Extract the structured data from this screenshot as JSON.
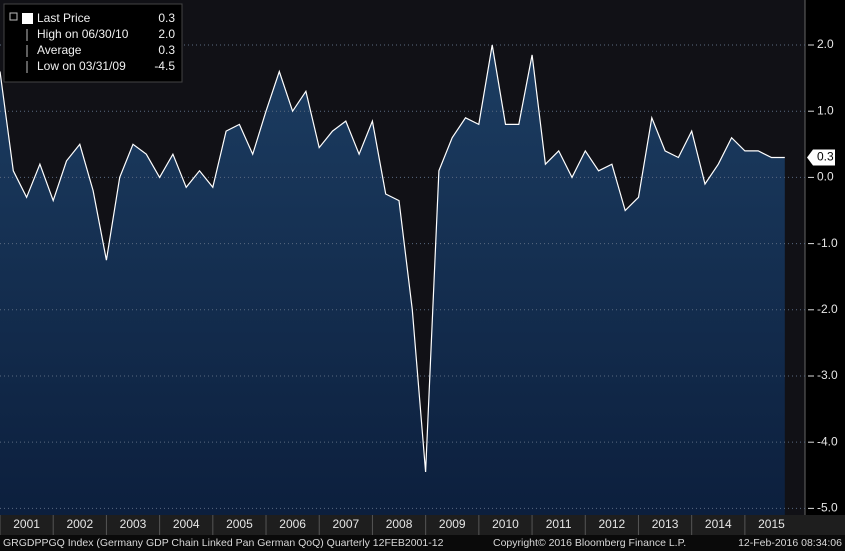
{
  "chart_data": {
    "type": "area",
    "legend": [
      {
        "label": "Last Price",
        "value": "0.3"
      },
      {
        "label": "High on 06/30/10",
        "value": "2.0"
      },
      {
        "label": "Average",
        "value": "0.3"
      },
      {
        "label": "Low on 03/31/09",
        "value": "-4.5"
      }
    ],
    "last_label": "0.3",
    "series": [
      {
        "name": "GRGDPPGQ Index",
        "color": "#ffffff",
        "x": [
          2001,
          2001.25,
          2001.5,
          2001.75,
          2002,
          2002.25,
          2002.5,
          2002.75,
          2003,
          2003.25,
          2003.5,
          2003.75,
          2004,
          2004.25,
          2004.5,
          2004.75,
          2005,
          2005.25,
          2005.5,
          2005.75,
          2006,
          2006.25,
          2006.5,
          2006.75,
          2007,
          2007.25,
          2007.5,
          2007.75,
          2008,
          2008.25,
          2008.5,
          2008.75,
          2009,
          2009.25,
          2009.5,
          2009.75,
          2010,
          2010.25,
          2010.5,
          2010.75,
          2011,
          2011.25,
          2011.5,
          2011.75,
          2012,
          2012.25,
          2012.5,
          2012.75,
          2013,
          2013.25,
          2013.5,
          2013.75,
          2014,
          2014.25,
          2014.5,
          2014.75,
          2015,
          2015.25,
          2015.5,
          2015.75
        ],
        "values": [
          1.6,
          0.1,
          -0.3,
          0.2,
          -0.35,
          0.25,
          0.5,
          -0.2,
          -1.25,
          0.0,
          0.5,
          0.35,
          0.0,
          0.35,
          -0.15,
          0.1,
          -0.15,
          0.7,
          0.8,
          0.35,
          1.0,
          1.6,
          1.0,
          1.3,
          0.45,
          0.7,
          0.85,
          0.35,
          0.85,
          -0.25,
          -0.35,
          -2.0,
          -4.45,
          0.1,
          0.6,
          0.9,
          0.8,
          2.0,
          0.8,
          0.8,
          1.85,
          0.2,
          0.4,
          0.0,
          0.4,
          0.1,
          0.2,
          -0.5,
          -0.3,
          0.9,
          0.4,
          0.3,
          0.7,
          -0.1,
          0.2,
          0.6,
          0.4,
          0.4,
          0.3,
          0.3
        ]
      }
    ],
    "xlim": [
      2001,
      2016.13
    ],
    "xticks": [
      2001,
      2002,
      2003,
      2004,
      2005,
      2006,
      2007,
      2008,
      2009,
      2010,
      2011,
      2012,
      2013,
      2014,
      2015
    ],
    "ylim": [
      -5.1,
      2.68
    ],
    "yticks": [
      {
        "value": 2,
        "label": "2.0"
      },
      {
        "value": 1,
        "label": "1.0"
      },
      {
        "value": 0,
        "label": "0.0"
      },
      {
        "value": -1,
        "label": "-1.0"
      },
      {
        "value": -2,
        "label": "-2.0"
      },
      {
        "value": -3,
        "label": "-3.0"
      },
      {
        "value": -4,
        "label": "-4.0"
      },
      {
        "value": -5,
        "label": "-5.0"
      }
    ],
    "grid": true,
    "footer": [
      "GRGDPPGQ Index (Germany GDP Chain Linked Pan German QoQ)  Quarterly 12FEB2001-12",
      "Copyright© 2016 Bloomberg Finance L.P.",
      "12-Feb-2016 08:34:06"
    ]
  }
}
